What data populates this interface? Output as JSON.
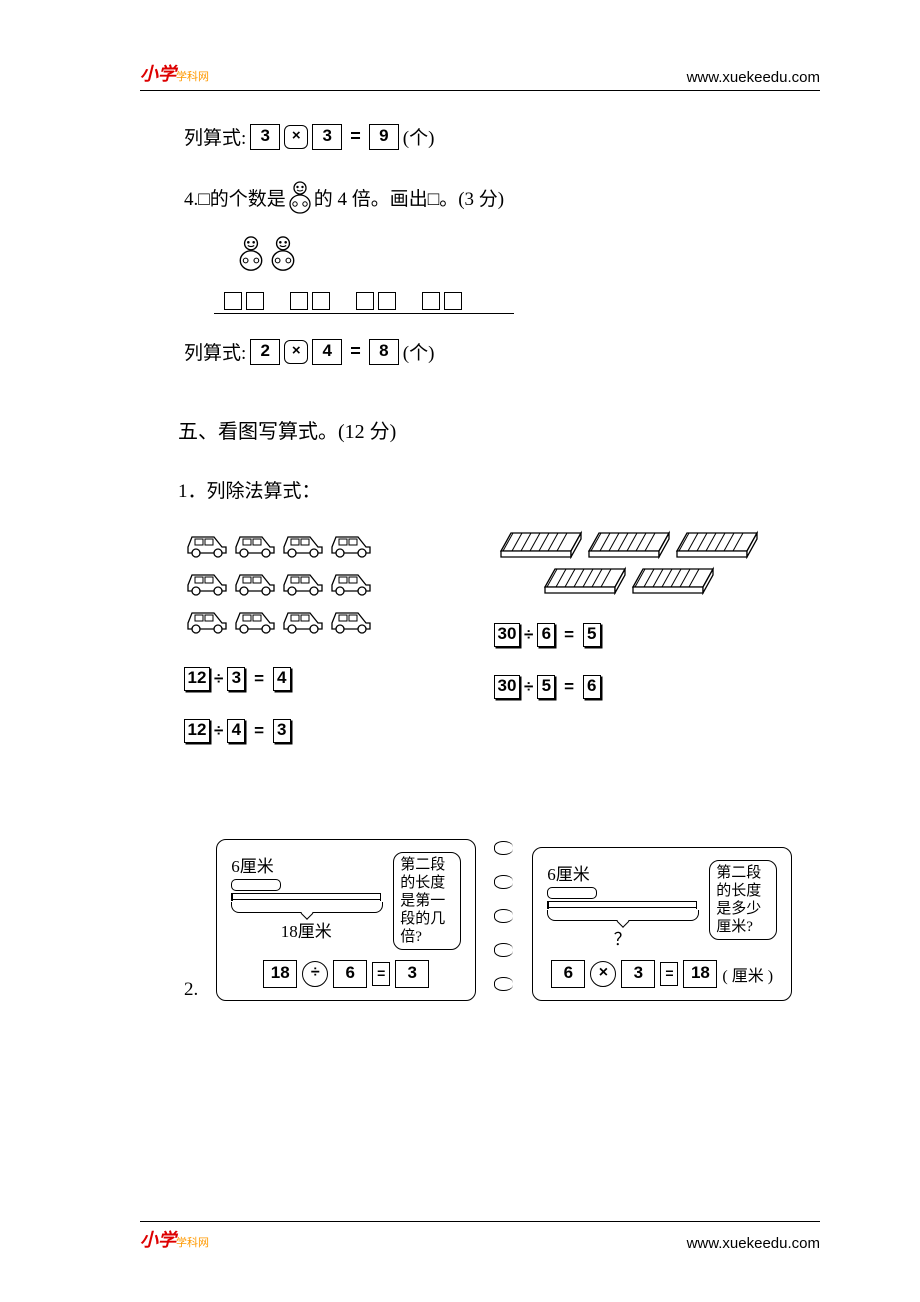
{
  "brand_prefix": "小学",
  "brand_suffix": "学科网",
  "url": "www.xuekeedu.com",
  "eq1": {
    "label": "列算式:",
    "a": "3",
    "op": "×",
    "b": "3",
    "r": "9",
    "unit": "(个)"
  },
  "q4": {
    "prefix": "4.□的个数是",
    "middle": "的 4 倍。画出□。",
    "points": "(3 分)",
    "doll_count": 2,
    "square_groups": 4
  },
  "eq2": {
    "label": "列算式:",
    "a": "2",
    "op": "×",
    "b": "4",
    "r": "8",
    "unit": "(个)"
  },
  "sec5": {
    "title": "五、看图写算式。(12 分)",
    "sub1": "1．列除法算式："
  },
  "cars": {
    "rows": 3,
    "cols": 4,
    "eqs": [
      {
        "a": "12",
        "op": "÷",
        "b": "3",
        "r": "4"
      },
      {
        "a": "12",
        "op": "÷",
        "b": "4",
        "r": "3"
      }
    ]
  },
  "slats": {
    "row1": 3,
    "row2": 2,
    "eqs": [
      {
        "a": "30",
        "op": "÷",
        "b": "6",
        "r": "5"
      },
      {
        "a": "30",
        "op": "÷",
        "b": "5",
        "r": "6"
      }
    ]
  },
  "q2": {
    "num": "2.",
    "left": {
      "short": "6厘米",
      "question": "第二段的长度是第一段的几倍?",
      "long": "18厘米",
      "a": "18",
      "op": "÷",
      "b": "6",
      "r": "3"
    },
    "right": {
      "short": "6厘米",
      "question": "第二段的长度是多少厘米?",
      "long": "？",
      "a": "6",
      "op": "×",
      "b": "3",
      "r": "18",
      "unit": "( 厘米 )"
    }
  },
  "colors": {
    "text": "#000000",
    "bg": "#ffffff",
    "brand_red": "#d00000",
    "brand_orange": "#ff9900"
  }
}
